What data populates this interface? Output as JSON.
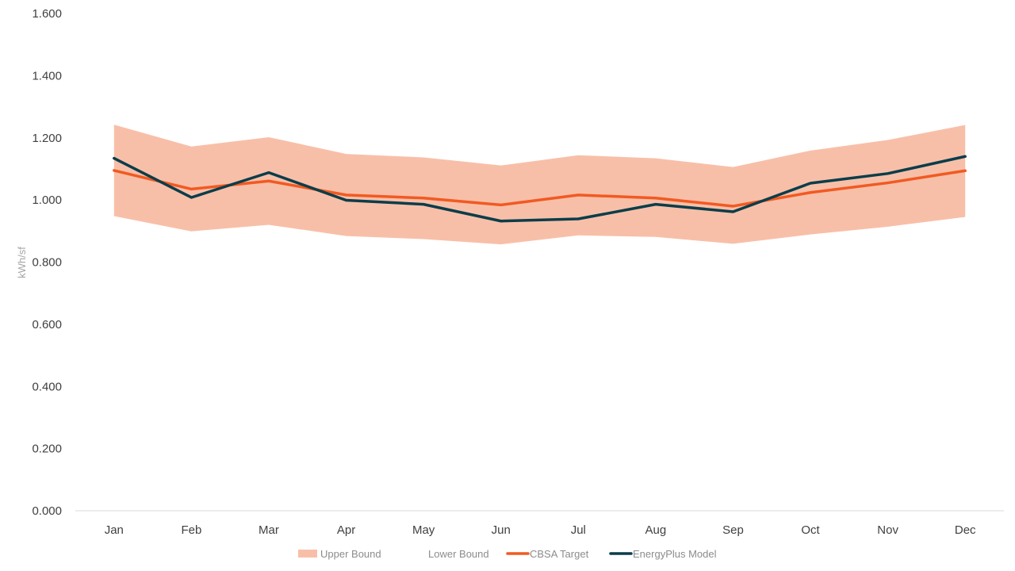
{
  "chart_data": {
    "type": "line",
    "title": "",
    "xlabel": "",
    "ylabel": "kWh/sf",
    "ylim": [
      0,
      1.6
    ],
    "yticks": [
      "0.000",
      "0.200",
      "0.400",
      "0.600",
      "0.800",
      "1.000",
      "1.200",
      "1.400",
      "1.600"
    ],
    "grid": false,
    "legend_position": "bottom",
    "categories": [
      "Jan",
      "Feb",
      "Mar",
      "Apr",
      "May",
      "Jun",
      "Jul",
      "Aug",
      "Sep",
      "Oct",
      "Nov",
      "Dec"
    ],
    "series": [
      {
        "name": "Upper Bound",
        "kind": "band",
        "color": "#f8bfa8",
        "values": [
          1.242,
          1.172,
          1.202,
          1.148,
          1.137,
          1.111,
          1.144,
          1.134,
          1.106,
          1.159,
          1.193,
          1.241
        ]
      },
      {
        "name": "Lower Bound",
        "kind": "band-base",
        "color": "#ffffff",
        "values": [
          0.948,
          0.899,
          0.92,
          0.884,
          0.874,
          0.857,
          0.886,
          0.881,
          0.859,
          0.889,
          0.914,
          0.945
        ]
      },
      {
        "name": "CBSA Target",
        "kind": "line",
        "color": "#f15a22",
        "values": [
          1.095,
          1.035,
          1.061,
          1.016,
          1.006,
          0.984,
          1.016,
          1.006,
          0.98,
          1.024,
          1.055,
          1.094
        ]
      },
      {
        "name": "EnergyPlus Model",
        "kind": "line",
        "color": "#0b3d4a",
        "values": [
          1.134,
          1.008,
          1.088,
          0.999,
          0.986,
          0.932,
          0.939,
          0.986,
          0.962,
          1.054,
          1.085,
          1.14
        ]
      }
    ]
  }
}
